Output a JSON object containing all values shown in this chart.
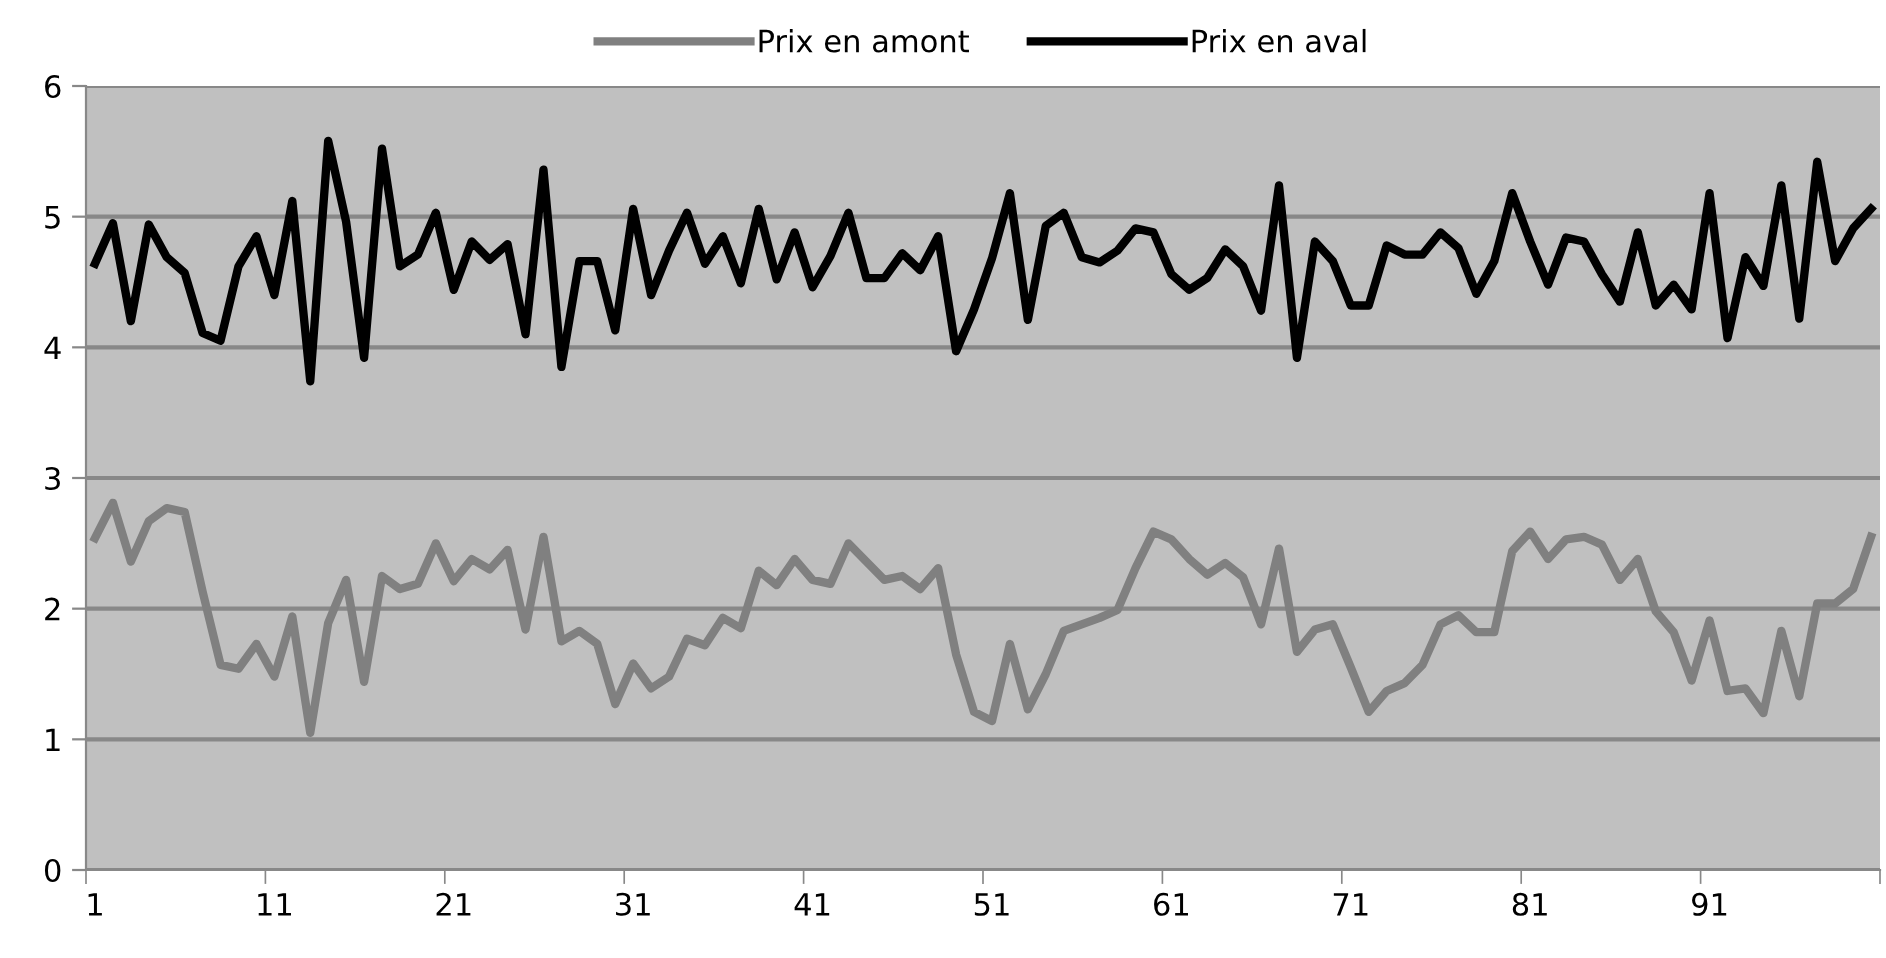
{
  "chart_data": {
    "type": "line",
    "categories": [
      "1",
      null,
      null,
      null,
      null,
      null,
      null,
      null,
      null,
      null,
      "11",
      null,
      null,
      null,
      null,
      null,
      null,
      null,
      null,
      null,
      "21",
      null,
      null,
      null,
      null,
      null,
      null,
      null,
      null,
      null,
      "31",
      null,
      null,
      null,
      null,
      null,
      null,
      null,
      null,
      null,
      "41",
      null,
      null,
      null,
      null,
      null,
      null,
      null,
      null,
      null,
      "51",
      null,
      null,
      null,
      null,
      null,
      null,
      null,
      null,
      null,
      "61",
      null,
      null,
      null,
      null,
      null,
      null,
      null,
      null,
      null,
      "71",
      null,
      null,
      null,
      null,
      null,
      null,
      null,
      null,
      null,
      "81",
      null,
      null,
      null,
      null,
      null,
      null,
      null,
      null,
      null,
      "91",
      null,
      null,
      null,
      null,
      null,
      null,
      null,
      null,
      null
    ],
    "series": [
      {
        "name": "Prix en amont",
        "color": "#808080",
        "values": [
          2.54,
          2.81,
          2.36,
          2.67,
          2.77,
          2.74,
          2.13,
          1.57,
          1.54,
          1.73,
          1.48,
          1.94,
          1.05,
          1.89,
          2.22,
          1.44,
          2.25,
          2.15,
          2.19,
          2.5,
          2.21,
          2.38,
          2.3,
          2.45,
          1.84,
          2.55,
          1.75,
          1.83,
          1.73,
          1.27,
          1.58,
          1.39,
          1.48,
          1.77,
          1.72,
          1.93,
          1.85,
          2.29,
          2.18,
          2.38,
          2.22,
          2.19,
          2.5,
          2.36,
          2.22,
          2.25,
          2.15,
          2.31,
          1.65,
          1.21,
          1.14,
          1.73,
          1.23,
          1.5,
          1.83,
          1.88,
          1.93,
          1.99,
          2.31,
          2.59,
          2.53,
          2.38,
          2.26,
          2.35,
          2.24,
          1.88,
          2.46,
          1.67,
          1.84,
          1.88,
          1.55,
          1.21,
          1.37,
          1.43,
          1.57,
          1.88,
          1.95,
          1.82,
          1.82,
          2.44,
          2.59,
          2.38,
          2.53,
          2.55,
          2.49,
          2.22,
          2.38,
          1.98,
          1.82,
          1.45,
          1.91,
          1.37,
          1.39,
          1.2,
          1.83,
          1.33,
          2.04,
          2.04,
          2.15,
          2.55
        ]
      },
      {
        "name": "Prix en aval",
        "color": "#000000",
        "values": [
          4.64,
          4.95,
          4.2,
          4.94,
          4.69,
          4.57,
          4.11,
          4.05,
          4.62,
          4.85,
          4.4,
          5.12,
          3.74,
          5.58,
          4.96,
          3.92,
          5.52,
          4.62,
          4.71,
          5.03,
          4.44,
          4.81,
          4.67,
          4.79,
          4.1,
          5.36,
          3.85,
          4.66,
          4.66,
          4.13,
          5.06,
          4.4,
          4.74,
          5.03,
          4.64,
          4.85,
          4.49,
          5.06,
          4.52,
          4.88,
          4.46,
          4.7,
          5.03,
          4.53,
          4.53,
          4.72,
          4.59,
          4.85,
          3.97,
          4.29,
          4.68,
          5.18,
          4.21,
          4.93,
          5.03,
          4.69,
          4.65,
          4.74,
          4.91,
          4.88,
          4.56,
          4.44,
          4.53,
          4.75,
          4.62,
          4.28,
          5.24,
          3.92,
          4.81,
          4.66,
          4.32,
          4.32,
          4.78,
          4.71,
          4.71,
          4.88,
          4.76,
          4.41,
          4.66,
          5.18,
          4.81,
          4.48,
          4.84,
          4.81,
          4.56,
          4.35,
          4.88,
          4.32,
          4.48,
          4.29,
          5.18,
          4.07,
          4.69,
          4.47,
          5.24,
          4.22,
          5.42,
          4.66,
          4.91,
          5.06
        ]
      }
    ],
    "ylim": [
      0,
      6
    ],
    "yticks": [
      0,
      1,
      2,
      3,
      4,
      5,
      6
    ],
    "grid": "y",
    "legend": "top",
    "marker": "none",
    "line_style": "solid"
  }
}
